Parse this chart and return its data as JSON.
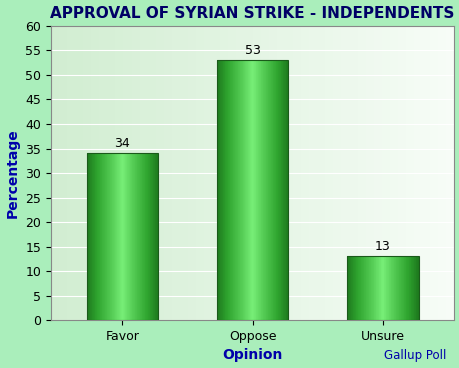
{
  "title": "APPROVAL OF SYRIAN STRIKE - INDEPENDENTS",
  "categories": [
    "Favor",
    "Oppose",
    "Unsure"
  ],
  "values": [
    34,
    53,
    13
  ],
  "bar_color_center": "#66dd66",
  "bar_color_mid": "#33bb33",
  "bar_color_edge": "#1a7a1a",
  "xlabel": "Opinion",
  "ylabel": "Percentage",
  "ylim": [
    0,
    60
  ],
  "yticks": [
    0,
    5,
    10,
    15,
    20,
    25,
    30,
    35,
    40,
    45,
    50,
    55,
    60
  ],
  "background_color": "#aaeebb",
  "plot_bg_left": "#cceecc",
  "plot_bg_right": "#eeffee",
  "title_color": "#000066",
  "label_color": "#0000aa",
  "tick_color": "#000000",
  "annotation_color": "#000000",
  "watermark": "Gallup Poll",
  "watermark_color": "#0000aa",
  "grid_color": "#cccccc",
  "title_fontsize": 11,
  "axis_label_fontsize": 10,
  "tick_fontsize": 9,
  "annotation_fontsize": 9,
  "bar_width": 0.55
}
